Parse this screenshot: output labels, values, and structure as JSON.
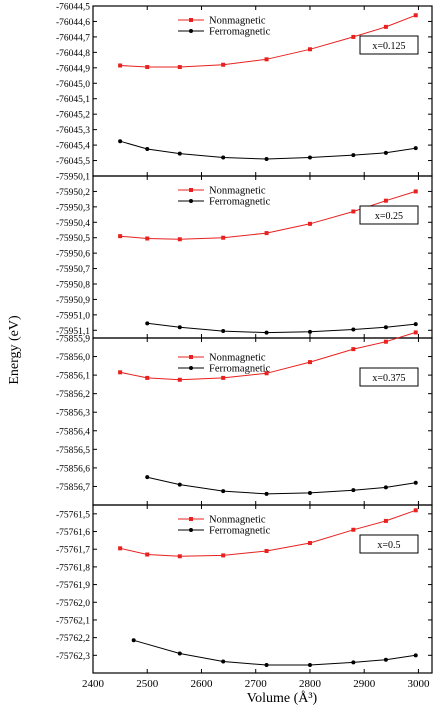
{
  "chart_data": {
    "type": "line",
    "xlabel": "Volume (Å³)",
    "ylabel": "Energy (eV)",
    "x_ticks": [
      "2400",
      "2500",
      "2600",
      "2700",
      "2800",
      "2900",
      "3000"
    ],
    "xlim": [
      2400,
      3025
    ],
    "legend_position": "top",
    "colors": {
      "Nonmagnetic": "#e8201e",
      "Ferromagnetic": "#000000"
    },
    "panels": [
      {
        "label": "x=0.125",
        "ylim": [
          -76045.6,
          -76044.5
        ],
        "y_ticks": [
          "-76044,5",
          "-76044,6",
          "-76044,7",
          "-76044,8",
          "-76044,9",
          "-76045,0",
          "-76045,1",
          "-76045,2",
          "-76045,3",
          "-76045,4",
          "-76045,5"
        ],
        "series": [
          {
            "name": "Nonmagnetic",
            "x": [
              2450,
              2500,
              2560,
              2640,
              2720,
              2800,
              2880,
              2940,
              2995
            ],
            "y": [
              -76044.885,
              -76044.895,
              -76044.895,
              -76044.88,
              -76044.845,
              -76044.78,
              -76044.7,
              -76044.635,
              -76044.56
            ]
          },
          {
            "name": "Ferromagnetic",
            "x": [
              2450,
              2500,
              2560,
              2640,
              2720,
              2800,
              2880,
              2940,
              2995
            ],
            "y": [
              -76045.375,
              -76045.425,
              -76045.455,
              -76045.48,
              -76045.49,
              -76045.48,
              -76045.465,
              -76045.45,
              -76045.42
            ]
          }
        ]
      },
      {
        "label": "x=0.25",
        "ylim": [
          -75951.15,
          -75950.1
        ],
        "y_ticks": [
          "-75950,1",
          "-75950,2",
          "-75950,3",
          "-75950,4",
          "-75950,5",
          "-75950,6",
          "-75950,7",
          "-75950,8",
          "-75950,9",
          "-75951,0",
          "-75951,1"
        ],
        "series": [
          {
            "name": "Nonmagnetic",
            "x": [
              2450,
              2500,
              2560,
              2640,
              2720,
              2800,
              2880,
              2940,
              2995
            ],
            "y": [
              -75950.49,
              -75950.505,
              -75950.51,
              -75950.5,
              -75950.47,
              -75950.41,
              -75950.33,
              -75950.26,
              -75950.2
            ]
          },
          {
            "name": "Ferromagnetic",
            "x": [
              2500,
              2560,
              2640,
              2720,
              2800,
              2880,
              2940,
              2995
            ],
            "y": [
              -75951.055,
              -75951.08,
              -75951.105,
              -75951.115,
              -75951.11,
              -75951.095,
              -75951.08,
              -75951.06
            ]
          }
        ]
      },
      {
        "label": "x=0.375",
        "ylim": [
          -75856.8,
          -75855.9
        ],
        "y_ticks": [
          "-75855,9",
          "-75856,0",
          "-75856,1",
          "-75856,2",
          "-75856,3",
          "-75856,4",
          "-75856,5",
          "-75856,6",
          "-75856,7"
        ],
        "series": [
          {
            "name": "Nonmagnetic",
            "x": [
              2450,
              2500,
              2560,
              2640,
              2720,
              2800,
              2880,
              2940,
              2995
            ],
            "y": [
              -75856.085,
              -75856.115,
              -75856.125,
              -75856.115,
              -75856.09,
              -75856.03,
              -75855.96,
              -75855.92,
              -75855.87
            ]
          },
          {
            "name": "Ferromagnetic",
            "x": [
              2500,
              2560,
              2640,
              2720,
              2800,
              2880,
              2940,
              2995
            ],
            "y": [
              -75856.65,
              -75856.69,
              -75856.725,
              -75856.74,
              -75856.735,
              -75856.72,
              -75856.705,
              -75856.68
            ]
          }
        ]
      },
      {
        "label": "x=0.5",
        "ylim": [
          -75762.4,
          -75761.45
        ],
        "y_ticks": [
          "-75761,5",
          "-75761,6",
          "-75761,7",
          "-75761,8",
          "-75761,9",
          "-75762,0",
          "-75762,1",
          "-75762,2",
          "-75762,3"
        ],
        "series": [
          {
            "name": "Nonmagnetic",
            "x": [
              2450,
              2500,
              2560,
              2640,
              2720,
              2800,
              2880,
              2940,
              2995
            ],
            "y": [
              -75761.695,
              -75761.73,
              -75761.74,
              -75761.735,
              -75761.71,
              -75761.665,
              -75761.59,
              -75761.54,
              -75761.48
            ]
          },
          {
            "name": "Ferromagnetic",
            "x": [
              2475,
              2560,
              2640,
              2720,
              2800,
              2880,
              2940,
              2995
            ],
            "y": [
              -75762.215,
              -75762.29,
              -75762.335,
              -75762.355,
              -75762.355,
              -75762.34,
              -75762.325,
              -75762.3
            ]
          }
        ]
      }
    ]
  }
}
